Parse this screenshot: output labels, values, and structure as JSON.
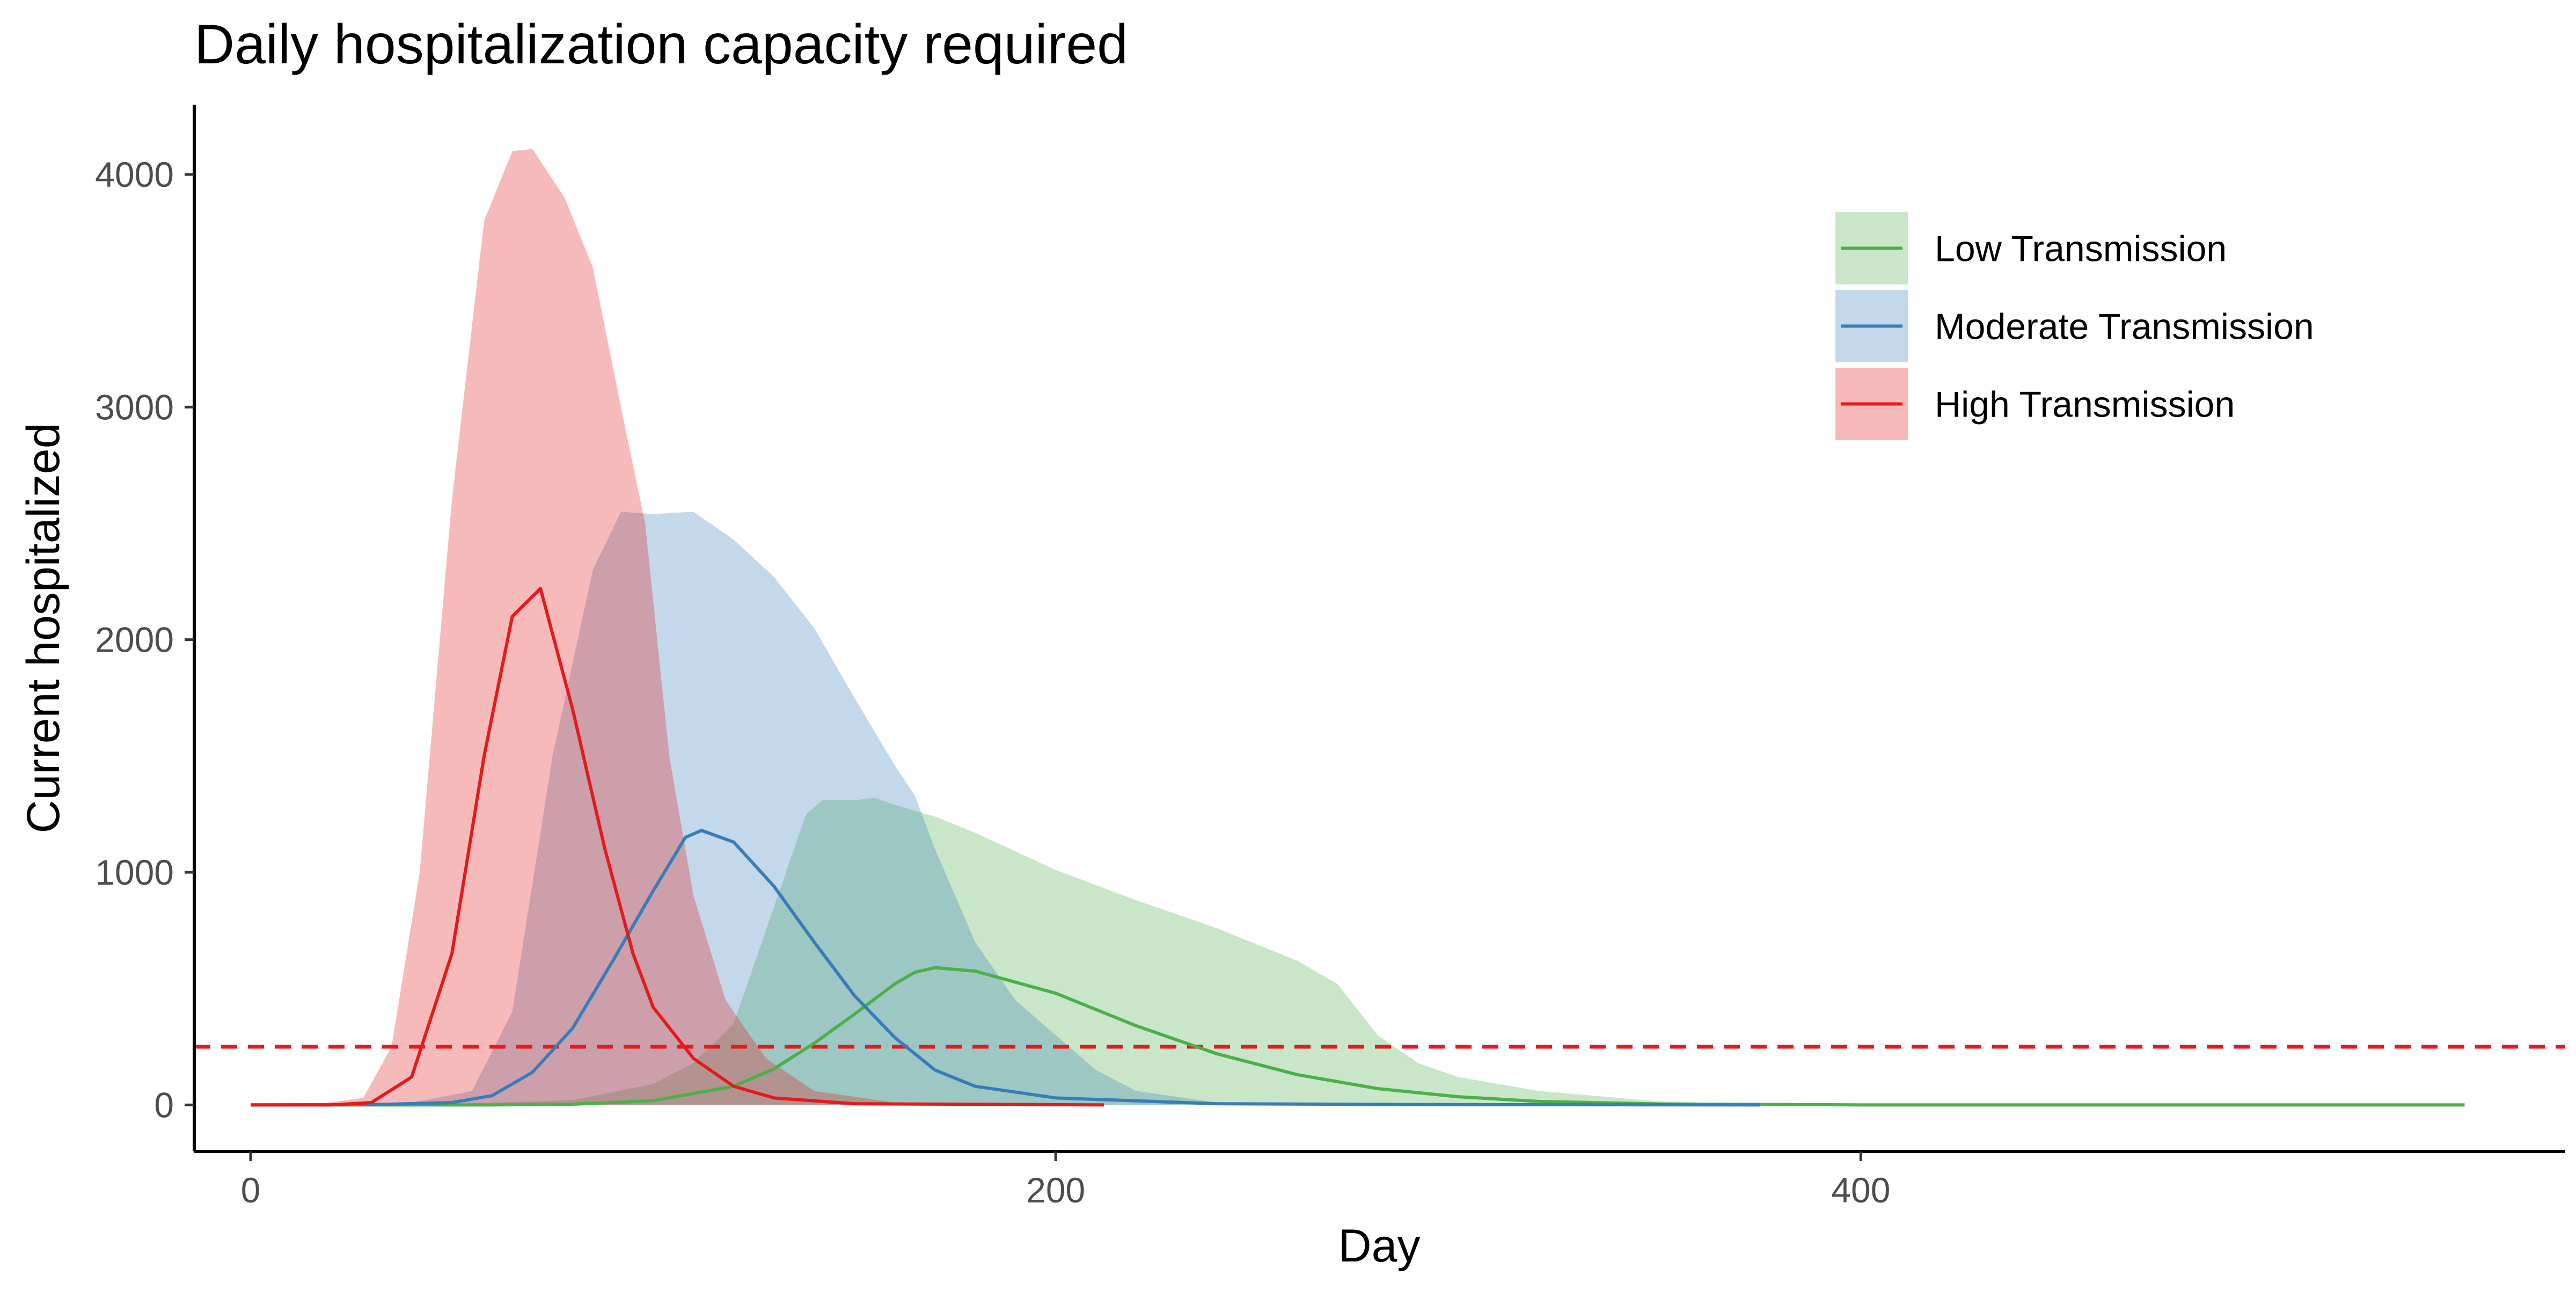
{
  "chart_data": {
    "type": "area",
    "title": "Daily hospitalization capacity required",
    "xlabel": "Day",
    "ylabel": "Current hospitalized",
    "xlim": [
      -14,
      575
    ],
    "ylim": [
      -200,
      4300
    ],
    "x_ticks": [
      0,
      200,
      400
    ],
    "y_ticks": [
      0,
      1000,
      2000,
      3000,
      4000
    ],
    "grid": false,
    "legend_position": "top-right",
    "reference_line": {
      "y": 250,
      "style": "dashed",
      "color": "#e41a1c"
    },
    "series": [
      {
        "name": "Low Transmission",
        "color": "#4daf4a",
        "fill_color": "#4daf4a",
        "median": [
          [
            0,
            0
          ],
          [
            60,
            0
          ],
          [
            80,
            3
          ],
          [
            100,
            18
          ],
          [
            120,
            80
          ],
          [
            130,
            155
          ],
          [
            140,
            265
          ],
          [
            150,
            390
          ],
          [
            160,
            520
          ],
          [
            165,
            570
          ],
          [
            170,
            590
          ],
          [
            180,
            575
          ],
          [
            200,
            480
          ],
          [
            220,
            340
          ],
          [
            240,
            220
          ],
          [
            260,
            130
          ],
          [
            280,
            70
          ],
          [
            300,
            35
          ],
          [
            320,
            15
          ],
          [
            350,
            4
          ],
          [
            400,
            0
          ],
          [
            550,
            0
          ]
        ],
        "upper": [
          [
            40,
            0
          ],
          [
            80,
            20
          ],
          [
            100,
            90
          ],
          [
            110,
            180
          ],
          [
            120,
            350
          ],
          [
            127,
            700
          ],
          [
            133,
            1000
          ],
          [
            138,
            1250
          ],
          [
            142,
            1310
          ],
          [
            150,
            1310
          ],
          [
            155,
            1320
          ],
          [
            160,
            1290
          ],
          [
            170,
            1240
          ],
          [
            180,
            1170
          ],
          [
            200,
            1010
          ],
          [
            220,
            880
          ],
          [
            240,
            760
          ],
          [
            260,
            620
          ],
          [
            270,
            520
          ],
          [
            280,
            300
          ],
          [
            290,
            180
          ],
          [
            300,
            120
          ],
          [
            320,
            60
          ],
          [
            350,
            15
          ],
          [
            380,
            0
          ]
        ]
      },
      {
        "name": "Moderate Transmission",
        "color": "#377eb8",
        "fill_color": "#377eb8",
        "median": [
          [
            0,
            0
          ],
          [
            30,
            1
          ],
          [
            50,
            10
          ],
          [
            60,
            40
          ],
          [
            70,
            140
          ],
          [
            80,
            330
          ],
          [
            90,
            620
          ],
          [
            100,
            920
          ],
          [
            108,
            1150
          ],
          [
            112,
            1180
          ],
          [
            120,
            1130
          ],
          [
            130,
            940
          ],
          [
            140,
            700
          ],
          [
            150,
            470
          ],
          [
            160,
            290
          ],
          [
            170,
            150
          ],
          [
            180,
            80
          ],
          [
            200,
            30
          ],
          [
            240,
            5
          ],
          [
            300,
            1
          ],
          [
            375,
            0
          ]
        ],
        "upper": [
          [
            25,
            0
          ],
          [
            40,
            10
          ],
          [
            55,
            60
          ],
          [
            65,
            400
          ],
          [
            75,
            1500
          ],
          [
            85,
            2300
          ],
          [
            92,
            2550
          ],
          [
            100,
            2540
          ],
          [
            110,
            2550
          ],
          [
            120,
            2430
          ],
          [
            130,
            2270
          ],
          [
            140,
            2050
          ],
          [
            150,
            1750
          ],
          [
            160,
            1460
          ],
          [
            165,
            1330
          ],
          [
            170,
            1100
          ],
          [
            180,
            700
          ],
          [
            190,
            450
          ],
          [
            200,
            300
          ],
          [
            210,
            150
          ],
          [
            220,
            60
          ],
          [
            240,
            10
          ],
          [
            260,
            0
          ]
        ]
      },
      {
        "name": "High Transmission",
        "color": "#e41a1c",
        "fill_color": "#e41a1c",
        "median": [
          [
            0,
            0
          ],
          [
            20,
            0
          ],
          [
            30,
            10
          ],
          [
            40,
            120
          ],
          [
            50,
            650
          ],
          [
            58,
            1500
          ],
          [
            65,
            2100
          ],
          [
            72,
            2220
          ],
          [
            80,
            1700
          ],
          [
            88,
            1100
          ],
          [
            95,
            650
          ],
          [
            100,
            420
          ],
          [
            110,
            200
          ],
          [
            120,
            80
          ],
          [
            130,
            30
          ],
          [
            150,
            5
          ],
          [
            212,
            0
          ]
        ],
        "upper": [
          [
            15,
            0
          ],
          [
            28,
            30
          ],
          [
            35,
            250
          ],
          [
            42,
            1000
          ],
          [
            50,
            2600
          ],
          [
            58,
            3800
          ],
          [
            65,
            4100
          ],
          [
            70,
            4110
          ],
          [
            78,
            3900
          ],
          [
            85,
            3600
          ],
          [
            92,
            3000
          ],
          [
            98,
            2500
          ],
          [
            104,
            1500
          ],
          [
            110,
            900
          ],
          [
            118,
            450
          ],
          [
            128,
            200
          ],
          [
            140,
            60
          ],
          [
            160,
            10
          ],
          [
            180,
            0
          ]
        ]
      }
    ]
  }
}
